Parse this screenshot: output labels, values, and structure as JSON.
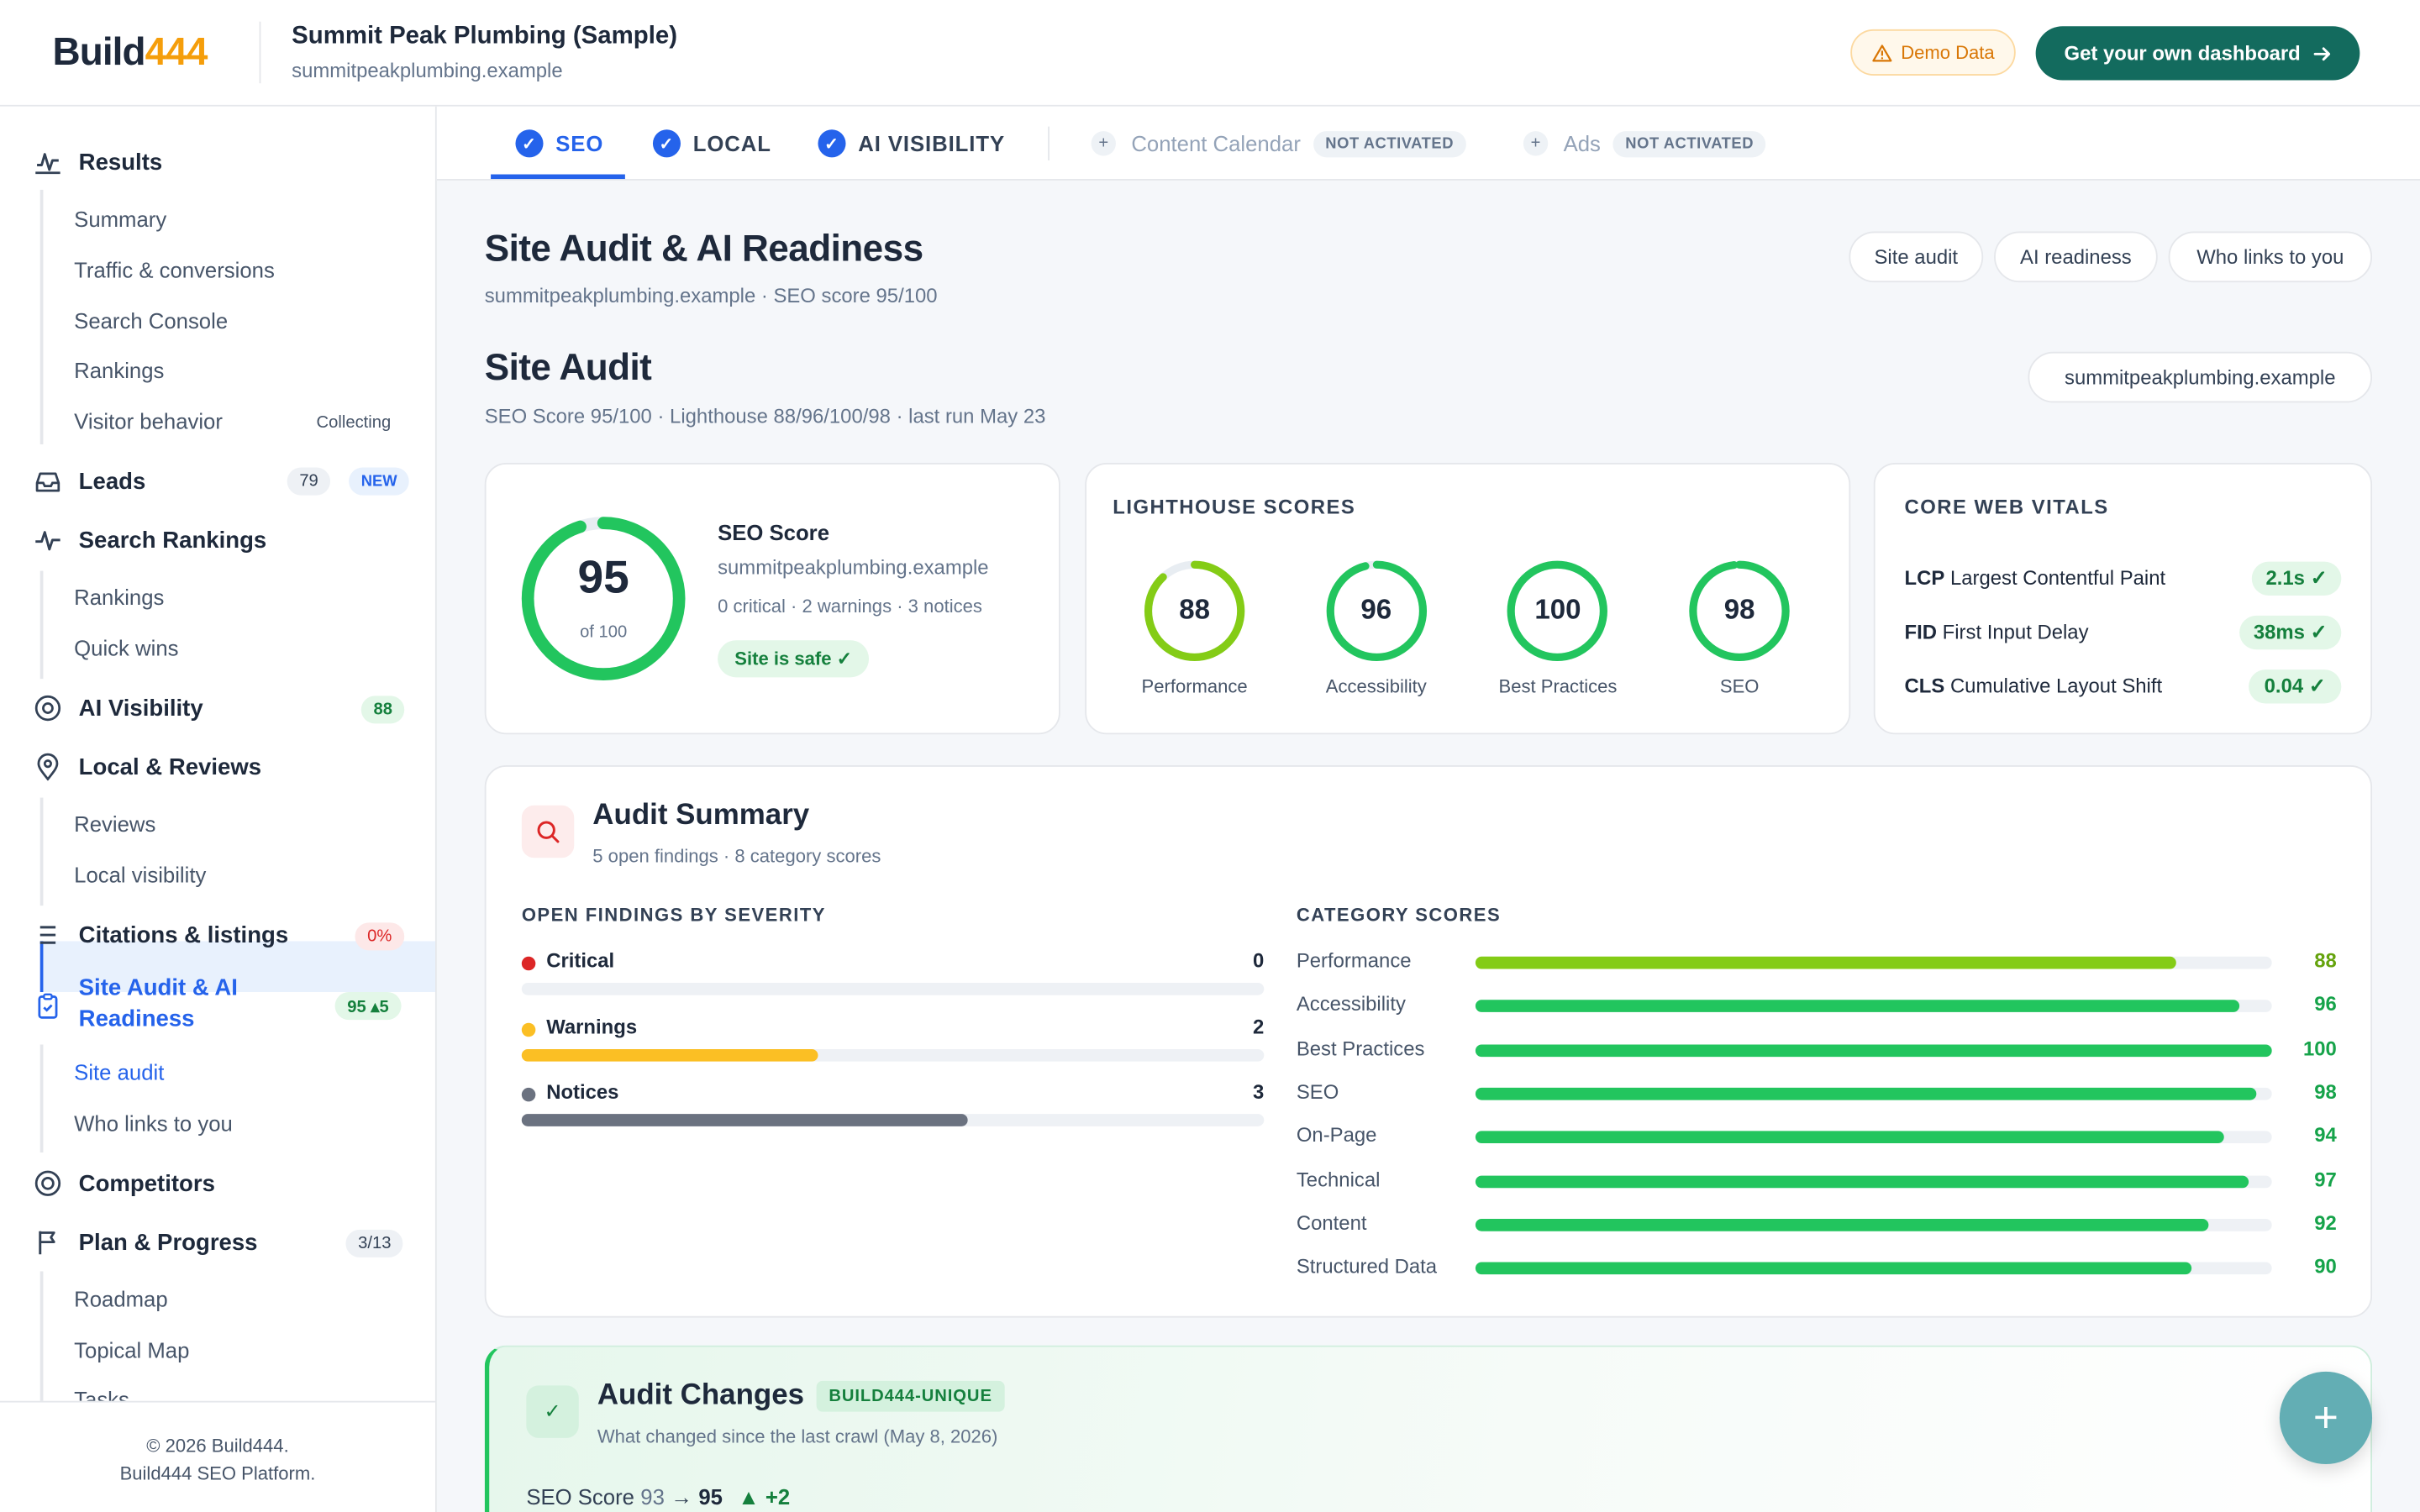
{
  "header": {
    "logo_main": "Build",
    "logo_accent": "444",
    "business_name": "Summit Peak Plumbing (Sample)",
    "business_domain": "summitpeakplumbing.example",
    "demo_badge": "Demo Data",
    "cta_label": "Get your own dashboard"
  },
  "sidebar": {
    "sections": [
      {
        "label": "Results",
        "icon": "pulse-icon"
      },
      {
        "label": "Leads",
        "icon": "inbox-icon",
        "badge": "79",
        "badge2": "NEW"
      },
      {
        "label": "Search Rankings",
        "icon": "trend-icon"
      },
      {
        "label": "AI Visibility",
        "icon": "target-icon",
        "badge": "88"
      },
      {
        "label": "Local & Reviews",
        "icon": "map-pin-icon"
      },
      {
        "label": "Citations & listings",
        "icon": "list-icon",
        "badge": "0%"
      },
      {
        "label": "Site Audit & AI Readiness",
        "icon": "clipboard-icon",
        "badge": "95 ▴5"
      },
      {
        "label": "Competitors",
        "icon": "target-icon"
      },
      {
        "label": "Plan & Progress",
        "icon": "flag-icon",
        "badge": "3/13"
      }
    ],
    "results_items": [
      "Summary",
      "Traffic & conversions",
      "Search Console",
      "Rankings",
      "Visitor behavior"
    ],
    "visitor_status": "Collecting",
    "rankings_items": [
      "Rankings",
      "Quick wins"
    ],
    "local_items": [
      "Reviews",
      "Local visibility"
    ],
    "audit_items": [
      "Site audit",
      "Who links to you"
    ],
    "plan_items": [
      "Roadmap",
      "Topical Map",
      "Tasks"
    ],
    "footer_line1": "© 2026 Build444.",
    "footer_line2": "Build444 SEO Platform."
  },
  "tabs": [
    {
      "label": "SEO",
      "state": "active"
    },
    {
      "label": "LOCAL",
      "state": "checked"
    },
    {
      "label": "AI VISIBILITY",
      "state": "checked"
    },
    {
      "label": "Content Calendar",
      "state": "not-activated",
      "tag": "NOT ACTIVATED"
    },
    {
      "label": "Ads",
      "state": "not-activated",
      "tag": "NOT ACTIVATED"
    }
  ],
  "page": {
    "title": "Site Audit & AI Readiness",
    "subtitle": "summitpeakplumbing.example · SEO score 95/100",
    "pills": [
      "Site audit",
      "AI readiness",
      "Who links to you"
    ],
    "section_title": "Site Audit",
    "section_subtitle": "SEO Score 95/100 · Lighthouse 88/96/100/98 · last run May 23",
    "domain_pill": "summitpeakplumbing.example"
  },
  "seo_score": {
    "value": 95,
    "of_label": "of 100",
    "title": "SEO Score",
    "domain": "summitpeakplumbing.example",
    "issues": "0 critical · 2 warnings · 3 notices",
    "status": "Site is safe ✓"
  },
  "lighthouse": {
    "title": "LIGHTHOUSE SCORES",
    "scores": [
      {
        "label": "Performance",
        "value": 88,
        "color": "#84cc16"
      },
      {
        "label": "Accessibility",
        "value": 96,
        "color": "#22c55e"
      },
      {
        "label": "Best Practices",
        "value": 100,
        "color": "#22c55e"
      },
      {
        "label": "SEO",
        "value": 98,
        "color": "#22c55e"
      }
    ]
  },
  "cwv": {
    "title": "CORE WEB VITALS",
    "rows": [
      {
        "abbr": "LCP",
        "name": "Largest Contentful Paint",
        "value": "2.1s ✓"
      },
      {
        "abbr": "FID",
        "name": "First Input Delay",
        "value": "38ms ✓"
      },
      {
        "abbr": "CLS",
        "name": "Cumulative Layout Shift",
        "value": "0.04 ✓"
      }
    ]
  },
  "audit_summary": {
    "title": "Audit Summary",
    "subtitle": "5 open findings · 8 category scores",
    "findings_title": "OPEN FINDINGS BY SEVERITY",
    "findings": [
      {
        "label": "Critical",
        "count": 0,
        "share": 0,
        "color": "#dc2626"
      },
      {
        "label": "Warnings",
        "count": 2,
        "share": 0.4,
        "color": "#fbbf24"
      },
      {
        "label": "Notices",
        "count": 3,
        "share": 0.6,
        "color": "#6b7280"
      }
    ],
    "categories_title": "CATEGORY SCORES",
    "categories": [
      {
        "label": "Performance",
        "value": 88,
        "color": "#84cc16"
      },
      {
        "label": "Accessibility",
        "value": 96,
        "color": "#22c55e"
      },
      {
        "label": "Best Practices",
        "value": 100,
        "color": "#22c55e"
      },
      {
        "label": "SEO",
        "value": 98,
        "color": "#22c55e"
      },
      {
        "label": "On-Page",
        "value": 94,
        "color": "#22c55e"
      },
      {
        "label": "Technical",
        "value": 97,
        "color": "#22c55e"
      },
      {
        "label": "Content",
        "value": 92,
        "color": "#22c55e"
      },
      {
        "label": "Structured Data",
        "value": 90,
        "color": "#22c55e"
      }
    ]
  },
  "audit_changes": {
    "title": "Audit Changes",
    "tag": "BUILD444-UNIQUE",
    "subtitle": "What changed since the last crawl (May 8, 2026)",
    "score_label": "SEO Score",
    "score_from": "93",
    "score_to": "95",
    "score_delta": "▲ +2"
  },
  "fab_label": "+"
}
